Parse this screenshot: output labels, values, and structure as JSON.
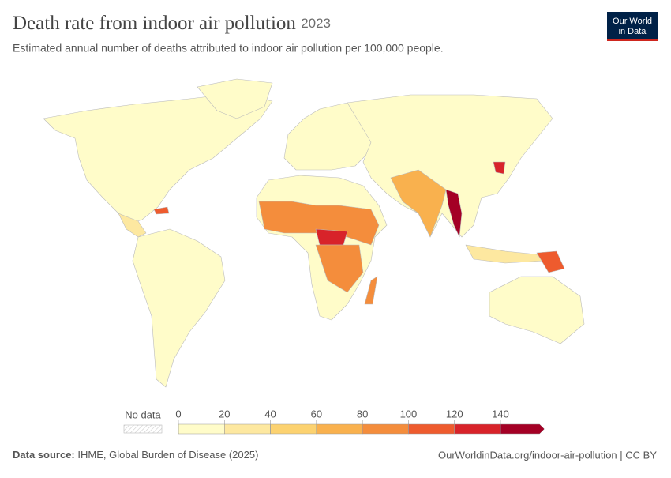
{
  "header": {
    "title": "Death rate from indoor air pollution",
    "year": "2023",
    "subtitle": "Estimated annual number of deaths attributed to indoor air pollution per 100,000 people.",
    "logo": [
      "Our World",
      "in Data"
    ]
  },
  "legend": {
    "no_data": "No data",
    "ticks": [
      0,
      20,
      40,
      60,
      80,
      100,
      120,
      140
    ],
    "colors": [
      "#fffcc9",
      "#fde8a0",
      "#fcd270",
      "#f9b14e",
      "#f48d3c",
      "#ee5b2e",
      "#d8232a",
      "#a40025"
    ]
  },
  "footer": {
    "source_label": "Data source:",
    "source": "IHME, Global Burden of Disease (2025)",
    "url": "OurWorldinData.org/indoor-air-pollution | CC BY"
  }
}
